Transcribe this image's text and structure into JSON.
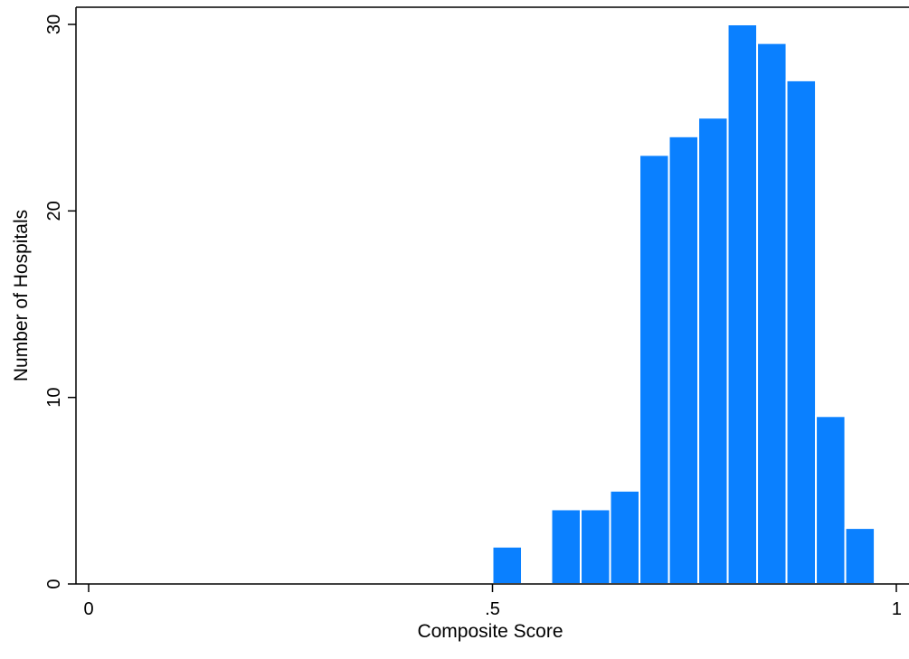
{
  "chart_data": {
    "type": "bar",
    "subtype": "histogram",
    "xlabel": "Composite Score",
    "ylabel": "Number of Hospitals",
    "xlim": [
      -0.015,
      1.0
    ],
    "ylim": [
      0,
      31
    ],
    "x_ticks": [
      {
        "value": 0,
        "label": "0"
      },
      {
        "value": 0.5,
        "label": ".5"
      },
      {
        "value": 1,
        "label": "1"
      }
    ],
    "y_ticks": [
      {
        "value": 0,
        "label": "0"
      },
      {
        "value": 10,
        "label": "10"
      },
      {
        "value": 20,
        "label": "20"
      },
      {
        "value": 30,
        "label": "30"
      }
    ],
    "bin_width": 0.0364,
    "bins": [
      {
        "x_start": 0.5,
        "x_end": 0.5364,
        "count": 2
      },
      {
        "x_start": 0.5728,
        "x_end": 0.6092,
        "count": 4
      },
      {
        "x_start": 0.6092,
        "x_end": 0.6456,
        "count": 4
      },
      {
        "x_start": 0.6456,
        "x_end": 0.682,
        "count": 5
      },
      {
        "x_start": 0.682,
        "x_end": 0.7184,
        "count": 23
      },
      {
        "x_start": 0.7184,
        "x_end": 0.7548,
        "count": 24
      },
      {
        "x_start": 0.7548,
        "x_end": 0.7912,
        "count": 25
      },
      {
        "x_start": 0.7912,
        "x_end": 0.8276,
        "count": 30
      },
      {
        "x_start": 0.8276,
        "x_end": 0.864,
        "count": 29
      },
      {
        "x_start": 0.864,
        "x_end": 0.9004,
        "count": 27
      },
      {
        "x_start": 0.9004,
        "x_end": 0.9368,
        "count": 9
      },
      {
        "x_start": 0.9368,
        "x_end": 0.9732,
        "count": 3
      }
    ],
    "grid": false,
    "legend": "none",
    "colors": {
      "bar_fill": "#0A80FF",
      "bar_edge": "#FFFFFF",
      "axis": "#000000",
      "background": "#FFFFFF"
    }
  }
}
